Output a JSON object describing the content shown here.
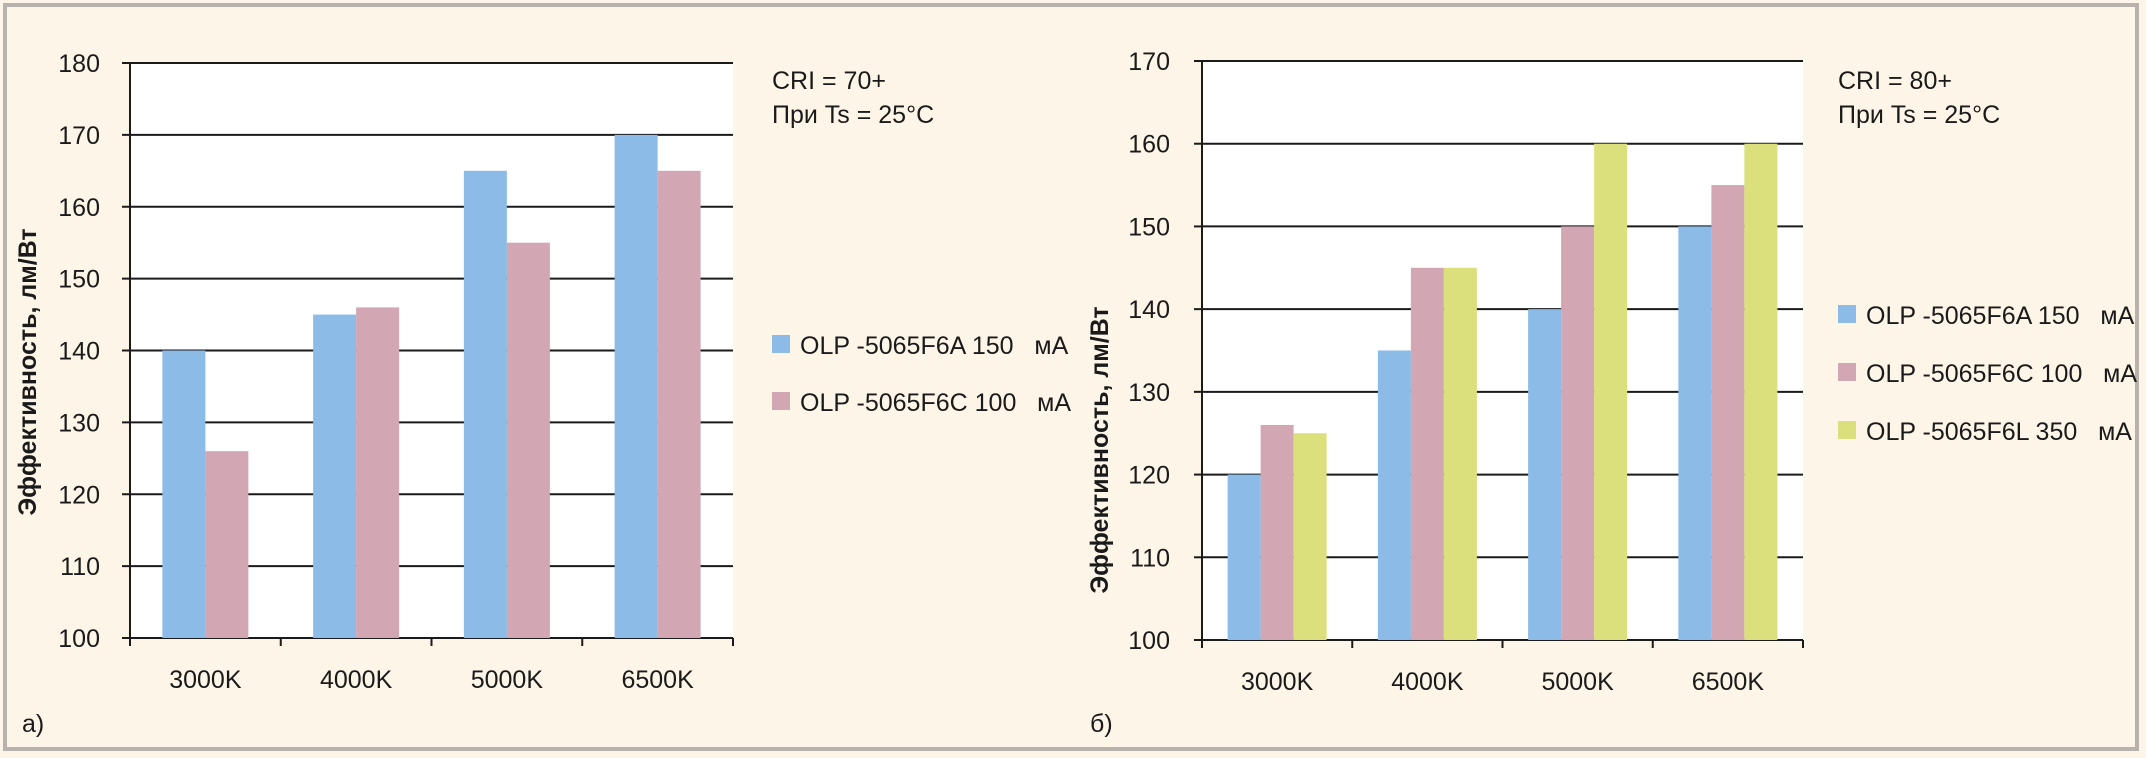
{
  "colors": {
    "background": "#fdf6e8",
    "plot_background": "#ffffff",
    "grid": "#1a1a1a",
    "series": [
      "#8bbbe6",
      "#d3a6b4",
      "#dbe07c"
    ]
  },
  "chart_data": [
    {
      "type": "bar",
      "panel_label": "а)",
      "title": "",
      "xlabel": "",
      "ylabel": "Эффективность, лм/Вт",
      "ylim": [
        100,
        180
      ],
      "yticks": [
        100,
        110,
        120,
        130,
        140,
        150,
        160,
        170,
        180
      ],
      "grid": true,
      "legend_position": "right",
      "categories": [
        "3000K",
        "4000K",
        "5000K",
        "6500K"
      ],
      "annotations": [
        "CRI = 70+",
        "При Ts = 25°C"
      ],
      "series": [
        {
          "name": "OLP -5065F6A 150   мА",
          "values": [
            140,
            145,
            165,
            170
          ]
        },
        {
          "name": "OLP -5065F6C 100   мА",
          "values": [
            126,
            146,
            155,
            165
          ]
        }
      ]
    },
    {
      "type": "bar",
      "panel_label": "б)",
      "title": "",
      "xlabel": "",
      "ylabel": "Эффективность, лм/Вт",
      "ylim": [
        100,
        170
      ],
      "yticks": [
        100,
        110,
        120,
        130,
        140,
        150,
        160,
        170
      ],
      "grid": true,
      "legend_position": "right",
      "categories": [
        "3000K",
        "4000K",
        "5000K",
        "6500K"
      ],
      "annotations": [
        "CRI = 80+",
        "При Ts = 25°C"
      ],
      "series": [
        {
          "name": "OLP -5065F6A 150   мА",
          "values": [
            120,
            135,
            140,
            150
          ]
        },
        {
          "name": "OLP -5065F6C 100   мА",
          "values": [
            126,
            145,
            150,
            155
          ]
        },
        {
          "name": "OLP -5065F6L 350   мА",
          "values": [
            125,
            145,
            160,
            160
          ]
        }
      ]
    }
  ]
}
